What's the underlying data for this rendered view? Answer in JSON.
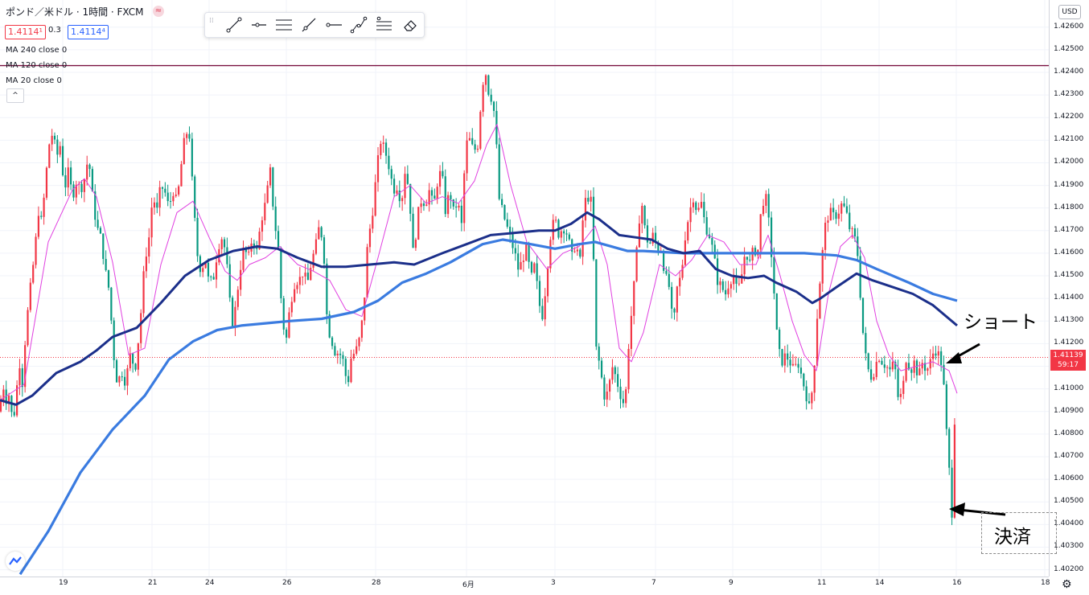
{
  "header": {
    "title": "ポンド／米ドル · 1時間 · FXCM",
    "bid": "1.4114¹",
    "spread": "0.3",
    "ask": "1.4114⁴"
  },
  "indicators": [
    {
      "label": "MA 240 close 0",
      "color": "#3a7be0"
    },
    {
      "label": "MA 120 close 0",
      "color": "#1b2f8a"
    },
    {
      "label": "MA 20 close 0",
      "color": "#e040e0"
    }
  ],
  "toolbar": {
    "tools": [
      "trend-line-icon",
      "horizontal-ray-icon",
      "parallel-channel-icon",
      "ray-icon",
      "horizontal-line-icon",
      "path-icon",
      "fib-retracement-icon",
      "eraser-icon"
    ]
  },
  "price_axis": {
    "currency": "USD",
    "ticks": [
      "1.42600",
      "1.42500",
      "1.42400",
      "1.42300",
      "1.42200",
      "1.42100",
      "1.42000",
      "1.41900",
      "1.41800",
      "1.41700",
      "1.41600",
      "1.41500",
      "1.41400",
      "1.41300",
      "1.41200",
      "1.41100",
      "1.41000",
      "1.40900",
      "1.40800",
      "1.40700",
      "1.40600",
      "1.40500",
      "1.40400",
      "1.40300",
      "1.40200"
    ],
    "current_price": "1.41139",
    "countdown": "59:17"
  },
  "time_axis": {
    "labels": [
      "19",
      "21",
      "24",
      "26",
      "28",
      "6月",
      "3",
      "7",
      "9",
      "11",
      "14",
      "16",
      "18"
    ]
  },
  "annotations": {
    "short": "ショート",
    "settle": "決済"
  },
  "colors": {
    "up": "#f23645",
    "down": "#089981",
    "ma240": "#3a7be0",
    "ma120": "#1b2f8a",
    "ma20": "#e040e0",
    "resistance": "#7a1040"
  },
  "chart_data": {
    "type": "candlestick",
    "symbol": "ポンド／米ドル",
    "timeframe": "1時間",
    "ylim": [
      1.4017,
      1.4272
    ],
    "horizontal_line": 1.4243,
    "current_price": 1.41139,
    "path": [
      [
        0,
        1.409
      ],
      [
        3,
        1.4104
      ],
      [
        7,
        1.4095
      ],
      [
        12,
        1.4098
      ],
      [
        16,
        1.4083
      ],
      [
        20,
        1.4098
      ],
      [
        25,
        1.4113
      ],
      [
        28,
        1.4102
      ],
      [
        32,
        1.4126
      ],
      [
        37,
        1.4142
      ],
      [
        43,
        1.416
      ],
      [
        48,
        1.4179
      ],
      [
        52,
        1.4173
      ],
      [
        56,
        1.419
      ],
      [
        61,
        1.4208
      ],
      [
        66,
        1.4214
      ],
      [
        70,
        1.4202
      ],
      [
        75,
        1.4208
      ],
      [
        80,
        1.4188
      ],
      [
        85,
        1.4196
      ],
      [
        90,
        1.4185
      ],
      [
        95,
        1.4192
      ],
      [
        100,
        1.4188
      ],
      [
        105,
        1.4193
      ],
      [
        110,
        1.4203
      ],
      [
        115,
        1.4185
      ],
      [
        120,
        1.4172
      ],
      [
        126,
        1.4166
      ],
      [
        131,
        1.4152
      ],
      [
        136,
        1.4143
      ],
      [
        141,
        1.4116
      ],
      [
        146,
        1.4102
      ],
      [
        151,
        1.4108
      ],
      [
        156,
        1.4103
      ],
      [
        162,
        1.4115
      ],
      [
        168,
        1.4109
      ],
      [
        174,
        1.4128
      ],
      [
        180,
        1.4157
      ],
      [
        185,
        1.4166
      ],
      [
        190,
        1.4186
      ],
      [
        195,
        1.4178
      ],
      [
        200,
        1.419
      ],
      [
        205,
        1.4187
      ],
      [
        210,
        1.418
      ],
      [
        215,
        1.4188
      ],
      [
        220,
        1.4182
      ],
      [
        225,
        1.4198
      ],
      [
        230,
        1.4212
      ],
      [
        235,
        1.4215
      ],
      [
        240,
        1.4185
      ],
      [
        245,
        1.416
      ],
      [
        250,
        1.4152
      ],
      [
        255,
        1.4158
      ],
      [
        260,
        1.4146
      ],
      [
        266,
        1.415
      ],
      [
        271,
        1.4163
      ],
      [
        277,
        1.4168
      ],
      [
        282,
        1.4155
      ],
      [
        288,
        1.4128
      ],
      [
        293,
        1.4136
      ],
      [
        298,
        1.4152
      ],
      [
        303,
        1.4162
      ],
      [
        309,
        1.4158
      ],
      [
        314,
        1.4168
      ],
      [
        319,
        1.416
      ],
      [
        325,
        1.4175
      ],
      [
        330,
        1.4182
      ],
      [
        336,
        1.4196
      ],
      [
        341,
        1.4175
      ],
      [
        346,
        1.4162
      ],
      [
        351,
        1.413
      ],
      [
        356,
        1.4122
      ],
      [
        361,
        1.4138
      ],
      [
        367,
        1.4148
      ],
      [
        372,
        1.4148
      ],
      [
        377,
        1.4152
      ],
      [
        382,
        1.4146
      ],
      [
        387,
        1.4156
      ],
      [
        392,
        1.4162
      ],
      [
        397,
        1.4172
      ],
      [
        402,
        1.4165
      ],
      [
        407,
        1.4128
      ],
      [
        412,
        1.4122
      ],
      [
        417,
        1.4116
      ],
      [
        422,
        1.4116
      ],
      [
        427,
        1.4112
      ],
      [
        432,
        1.4101
      ],
      [
        437,
        1.4115
      ],
      [
        442,
        1.4116
      ],
      [
        447,
        1.4122
      ],
      [
        452,
        1.4134
      ],
      [
        457,
        1.4164
      ],
      [
        463,
        1.4178
      ],
      [
        468,
        1.4195
      ],
      [
        473,
        1.421
      ],
      [
        479,
        1.4205
      ],
      [
        484,
        1.4198
      ],
      [
        489,
        1.4188
      ],
      [
        494,
        1.419
      ],
      [
        499,
        1.4182
      ],
      [
        504,
        1.4198
      ],
      [
        509,
        1.4186
      ],
      [
        514,
        1.4158
      ],
      [
        519,
        1.4176
      ],
      [
        524,
        1.4184
      ],
      [
        529,
        1.4182
      ],
      [
        534,
        1.4188
      ],
      [
        539,
        1.418
      ],
      [
        544,
        1.4192
      ],
      [
        549,
        1.4197
      ],
      [
        554,
        1.4178
      ],
      [
        559,
        1.4188
      ],
      [
        564,
        1.4178
      ],
      [
        569,
        1.4183
      ],
      [
        574,
        1.4172
      ],
      [
        579,
        1.4208
      ],
      [
        584,
        1.421
      ],
      [
        589,
        1.4205
      ],
      [
        594,
        1.4208
      ],
      [
        599,
        1.4232
      ],
      [
        603,
        1.4242
      ],
      [
        607,
        1.4232
      ],
      [
        612,
        1.4228
      ],
      [
        616,
        1.4218
      ],
      [
        620,
        1.4185
      ],
      [
        625,
        1.4178
      ],
      [
        630,
        1.4172
      ],
      [
        635,
        1.4166
      ],
      [
        640,
        1.416
      ],
      [
        645,
        1.4152
      ],
      [
        650,
        1.4158
      ],
      [
        655,
        1.4162
      ],
      [
        660,
        1.4148
      ],
      [
        665,
        1.4155
      ],
      [
        670,
        1.4138
      ],
      [
        675,
        1.4132
      ],
      [
        680,
        1.4152
      ],
      [
        685,
        1.417
      ],
      [
        690,
        1.4175
      ],
      [
        695,
        1.4168
      ],
      [
        700,
        1.4172
      ],
      [
        706,
        1.4168
      ],
      [
        711,
        1.4158
      ],
      [
        716,
        1.4165
      ],
      [
        721,
        1.4155
      ],
      [
        726,
        1.4182
      ],
      [
        731,
        1.4185
      ],
      [
        736,
        1.4182
      ],
      [
        741,
        1.4118
      ],
      [
        746,
        1.411
      ],
      [
        751,
        1.4097
      ],
      [
        756,
        1.4098
      ],
      [
        761,
        1.411
      ],
      [
        766,
        1.4105
      ],
      [
        771,
        1.4098
      ],
      [
        777,
        1.4092
      ],
      [
        782,
        1.4122
      ],
      [
        787,
        1.414
      ],
      [
        792,
        1.4162
      ],
      [
        797,
        1.4185
      ],
      [
        802,
        1.417
      ],
      [
        807,
        1.4163
      ],
      [
        812,
        1.4168
      ],
      [
        817,
        1.4162
      ],
      [
        822,
        1.4162
      ],
      [
        827,
        1.415
      ],
      [
        832,
        1.4145
      ],
      [
        837,
        1.4126
      ],
      [
        842,
        1.4145
      ],
      [
        847,
        1.415
      ],
      [
        852,
        1.4168
      ],
      [
        857,
        1.4178
      ],
      [
        862,
        1.4185
      ],
      [
        867,
        1.4178
      ],
      [
        872,
        1.4182
      ],
      [
        877,
        1.4172
      ],
      [
        882,
        1.4168
      ],
      [
        887,
        1.416
      ],
      [
        892,
        1.4148
      ],
      [
        897,
        1.4145
      ],
      [
        902,
        1.4142
      ],
      [
        907,
        1.4148
      ],
      [
        912,
        1.415
      ],
      [
        917,
        1.4142
      ],
      [
        922,
        1.415
      ],
      [
        927,
        1.4162
      ],
      [
        932,
        1.4155
      ],
      [
        937,
        1.4162
      ],
      [
        942,
        1.416
      ],
      [
        947,
        1.4182
      ],
      [
        952,
        1.4185
      ],
      [
        957,
        1.417
      ],
      [
        962,
        1.4145
      ],
      [
        967,
        1.4118
      ],
      [
        972,
        1.4112
      ],
      [
        977,
        1.4115
      ],
      [
        982,
        1.4112
      ],
      [
        987,
        1.4108
      ],
      [
        992,
        1.4112
      ],
      [
        997,
        1.4105
      ],
      [
        1002,
        1.4098
      ],
      [
        1007,
        1.409
      ],
      [
        1012,
        1.4108
      ],
      [
        1017,
        1.4138
      ],
      [
        1022,
        1.4158
      ],
      [
        1027,
        1.4175
      ],
      [
        1032,
        1.4178
      ],
      [
        1037,
        1.4176
      ],
      [
        1042,
        1.4178
      ],
      [
        1047,
        1.4182
      ],
      [
        1052,
        1.4178
      ],
      [
        1057,
        1.417
      ],
      [
        1062,
        1.4168
      ],
      [
        1067,
        1.4158
      ],
      [
        1072,
        1.4128
      ],
      [
        1077,
        1.4112
      ],
      [
        1082,
        1.4105
      ],
      [
        1087,
        1.4108
      ],
      [
        1092,
        1.4115
      ],
      [
        1097,
        1.4112
      ],
      [
        1102,
        1.411
      ],
      [
        1107,
        1.4108
      ],
      [
        1112,
        1.4112
      ],
      [
        1117,
        1.4095
      ],
      [
        1122,
        1.4098
      ],
      [
        1127,
        1.4115
      ],
      [
        1132,
        1.4108
      ],
      [
        1137,
        1.4112
      ],
      [
        1142,
        1.4105
      ],
      [
        1147,
        1.4112
      ],
      [
        1152,
        1.4108
      ],
      [
        1157,
        1.4112
      ],
      [
        1162,
        1.4118
      ],
      [
        1167,
        1.4115
      ],
      [
        1172,
        1.411
      ],
      [
        1176,
        1.4085
      ],
      [
        1180,
        1.4065
      ],
      [
        1184,
        1.4043
      ],
      [
        1187,
        1.4088
      ],
      [
        1190,
        1.4075
      ]
    ],
    "ma20": [
      [
        0,
        1.4095
      ],
      [
        30,
        1.4102
      ],
      [
        60,
        1.4165
      ],
      [
        90,
        1.4188
      ],
      [
        105,
        1.4193
      ],
      [
        120,
        1.4185
      ],
      [
        140,
        1.4156
      ],
      [
        160,
        1.4115
      ],
      [
        180,
        1.4118
      ],
      [
        200,
        1.4155
      ],
      [
        220,
        1.4178
      ],
      [
        240,
        1.4183
      ],
      [
        260,
        1.4167
      ],
      [
        280,
        1.4152
      ],
      [
        295,
        1.4148
      ],
      [
        310,
        1.4155
      ],
      [
        330,
        1.4158
      ],
      [
        348,
        1.4163
      ],
      [
        370,
        1.4155
      ],
      [
        390,
        1.4152
      ],
      [
        410,
        1.4148
      ],
      [
        430,
        1.4135
      ],
      [
        450,
        1.4132
      ],
      [
        470,
        1.4158
      ],
      [
        490,
        1.4185
      ],
      [
        510,
        1.419
      ],
      [
        530,
        1.4182
      ],
      [
        550,
        1.4185
      ],
      [
        570,
        1.4182
      ],
      [
        590,
        1.4192
      ],
      [
        605,
        1.4208
      ],
      [
        618,
        1.4217
      ],
      [
        635,
        1.419
      ],
      [
        655,
        1.4165
      ],
      [
        680,
        1.4153
      ],
      [
        700,
        1.416
      ],
      [
        720,
        1.4163
      ],
      [
        740,
        1.4172
      ],
      [
        755,
        1.4155
      ],
      [
        770,
        1.4118
      ],
      [
        785,
        1.4112
      ],
      [
        800,
        1.4125
      ],
      [
        820,
        1.4155
      ],
      [
        840,
        1.415
      ],
      [
        860,
        1.4157
      ],
      [
        880,
        1.4168
      ],
      [
        900,
        1.4165
      ],
      [
        920,
        1.4155
      ],
      [
        940,
        1.4155
      ],
      [
        955,
        1.4168
      ],
      [
        970,
        1.415
      ],
      [
        985,
        1.413
      ],
      [
        1000,
        1.4115
      ],
      [
        1015,
        1.4108
      ],
      [
        1030,
        1.4142
      ],
      [
        1045,
        1.4163
      ],
      [
        1060,
        1.4168
      ],
      [
        1075,
        1.4158
      ],
      [
        1090,
        1.413
      ],
      [
        1105,
        1.4115
      ],
      [
        1120,
        1.4108
      ],
      [
        1140,
        1.411
      ],
      [
        1160,
        1.4112
      ],
      [
        1180,
        1.4108
      ],
      [
        1190,
        1.4098
      ]
    ],
    "ma120": [
      [
        0,
        1.4095
      ],
      [
        20,
        1.4093
      ],
      [
        40,
        1.4097
      ],
      [
        70,
        1.4107
      ],
      [
        100,
        1.4112
      ],
      [
        120,
        1.4117
      ],
      [
        140,
        1.4123
      ],
      [
        170,
        1.4127
      ],
      [
        200,
        1.4138
      ],
      [
        230,
        1.415
      ],
      [
        260,
        1.4157
      ],
      [
        290,
        1.4161
      ],
      [
        320,
        1.4163
      ],
      [
        345,
        1.4162
      ],
      [
        370,
        1.4158
      ],
      [
        400,
        1.4154
      ],
      [
        430,
        1.4154
      ],
      [
        460,
        1.4155
      ],
      [
        490,
        1.4156
      ],
      [
        515,
        1.4155
      ],
      [
        550,
        1.416
      ],
      [
        580,
        1.4164
      ],
      [
        610,
        1.4168
      ],
      [
        640,
        1.4169
      ],
      [
        670,
        1.417
      ],
      [
        690,
        1.417
      ],
      [
        710,
        1.4173
      ],
      [
        730,
        1.4178
      ],
      [
        745,
        1.4175
      ],
      [
        770,
        1.4168
      ],
      [
        790,
        1.4167
      ],
      [
        810,
        1.4166
      ],
      [
        830,
        1.4162
      ],
      [
        850,
        1.416
      ],
      [
        870,
        1.4161
      ],
      [
        890,
        1.4153
      ],
      [
        910,
        1.415
      ],
      [
        930,
        1.4149
      ],
      [
        950,
        1.415
      ],
      [
        965,
        1.4147
      ],
      [
        990,
        1.4143
      ],
      [
        1010,
        1.4138
      ],
      [
        1020,
        1.414
      ],
      [
        1040,
        1.4145
      ],
      [
        1065,
        1.4151
      ],
      [
        1085,
        1.4148
      ],
      [
        1110,
        1.4145
      ],
      [
        1135,
        1.4142
      ],
      [
        1160,
        1.4137
      ],
      [
        1190,
        1.4128
      ]
    ],
    "ma240": [
      [
        25,
        1.4018
      ],
      [
        60,
        1.4037
      ],
      [
        100,
        1.4063
      ],
      [
        140,
        1.4082
      ],
      [
        180,
        1.4097
      ],
      [
        210,
        1.4113
      ],
      [
        240,
        1.4121
      ],
      [
        270,
        1.4126
      ],
      [
        300,
        1.4128
      ],
      [
        330,
        1.4129
      ],
      [
        360,
        1.413
      ],
      [
        400,
        1.4131
      ],
      [
        440,
        1.4134
      ],
      [
        470,
        1.4139
      ],
      [
        500,
        1.4147
      ],
      [
        530,
        1.4151
      ],
      [
        560,
        1.4156
      ],
      [
        600,
        1.4164
      ],
      [
        625,
        1.4166
      ],
      [
        660,
        1.4164
      ],
      [
        690,
        1.4162
      ],
      [
        720,
        1.4164
      ],
      [
        740,
        1.4165
      ],
      [
        780,
        1.4161
      ],
      [
        800,
        1.4161
      ],
      [
        850,
        1.416
      ],
      [
        900,
        1.416
      ],
      [
        940,
        1.416
      ],
      [
        960,
        1.416
      ],
      [
        1000,
        1.416
      ],
      [
        1040,
        1.4159
      ],
      [
        1065,
        1.4157
      ],
      [
        1090,
        1.4153
      ],
      [
        1130,
        1.4147
      ],
      [
        1160,
        1.4142
      ],
      [
        1190,
        1.4139
      ]
    ]
  }
}
